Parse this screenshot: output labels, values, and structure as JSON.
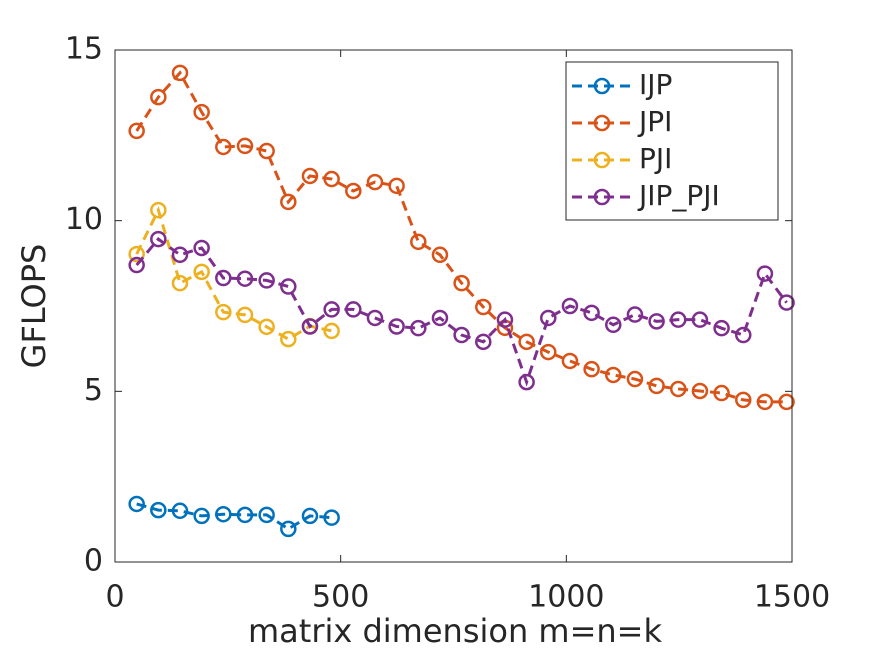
{
  "chart_data": {
    "type": "line",
    "xlabel": "matrix dimension m=n=k",
    "ylabel": "GFLOPS",
    "xlim": [
      0,
      1500
    ],
    "ylim": [
      0,
      15
    ],
    "xticks": [
      0,
      500,
      1000,
      1500
    ],
    "yticks": [
      0,
      5,
      10,
      15
    ],
    "legend": "upper right",
    "series": [
      {
        "name": "IJP",
        "color": "#0072bd",
        "x": [
          48,
          96,
          144,
          192,
          240,
          288,
          336,
          384,
          432,
          480
        ],
        "values": [
          1.7,
          1.52,
          1.5,
          1.35,
          1.4,
          1.38,
          1.38,
          0.97,
          1.35,
          1.3
        ]
      },
      {
        "name": "JPI",
        "color": "#d95319",
        "x": [
          48,
          96,
          144,
          192,
          240,
          288,
          336,
          384,
          432,
          480,
          528,
          576,
          624,
          672,
          720,
          768,
          816,
          864,
          912,
          960,
          1008,
          1056,
          1104,
          1152,
          1200,
          1248,
          1296,
          1344,
          1392,
          1440,
          1488
        ],
        "values": [
          12.63,
          13.62,
          14.33,
          13.18,
          12.16,
          12.19,
          12.04,
          10.55,
          11.31,
          11.22,
          10.87,
          11.13,
          11.02,
          9.38,
          9.0,
          8.17,
          7.47,
          6.86,
          6.45,
          6.15,
          5.89,
          5.65,
          5.48,
          5.36,
          5.16,
          5.07,
          5.01,
          4.95,
          4.75,
          4.69,
          4.69
        ]
      },
      {
        "name": "PJI",
        "color": "#edb120",
        "x": [
          48,
          96,
          144,
          192,
          240,
          288,
          336,
          384,
          432,
          480
        ],
        "values": [
          9.02,
          10.31,
          8.17,
          8.5,
          7.32,
          7.24,
          6.89,
          6.53,
          6.91,
          6.77
        ]
      },
      {
        "name": "JIP_PJI",
        "color": "#7e2f8e",
        "x": [
          48,
          96,
          144,
          192,
          240,
          288,
          336,
          384,
          432,
          480,
          528,
          576,
          624,
          672,
          720,
          768,
          816,
          864,
          912,
          960,
          1008,
          1056,
          1104,
          1152,
          1200,
          1248,
          1296,
          1344,
          1392,
          1440,
          1488
        ],
        "values": [
          8.7,
          9.46,
          9.0,
          9.2,
          8.32,
          8.3,
          8.25,
          8.07,
          6.9,
          7.4,
          7.4,
          7.15,
          6.9,
          6.85,
          7.15,
          6.65,
          6.45,
          7.1,
          5.27,
          7.15,
          7.5,
          7.3,
          6.95,
          7.25,
          7.05,
          7.1,
          7.1,
          6.85,
          6.65,
          8.45,
          7.6
        ]
      }
    ]
  }
}
